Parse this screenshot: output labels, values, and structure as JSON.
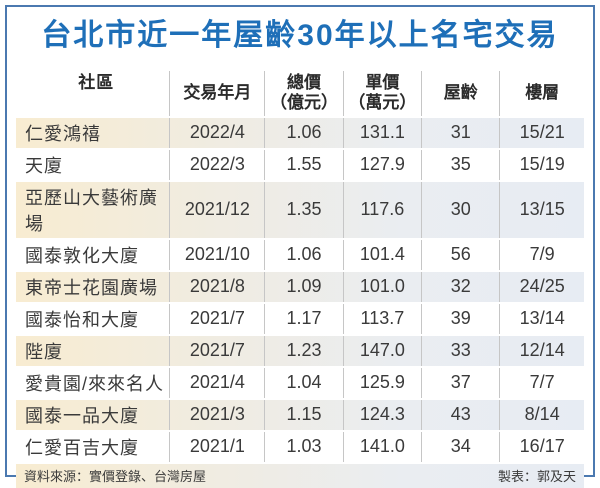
{
  "page": {
    "title": "台北市近一年屋齡30年以上名宅交易",
    "accent_title_blue": "#1e6fb8",
    "frame_border_blue": "#4b79b0",
    "divider_orange": "#f6ae05",
    "alt_row_left_cream": "#f8ecd1",
    "alt_row_right_blue": "#e7ecf3"
  },
  "chart_data": {
    "type": "table",
    "title": "台北市近一年屋齡30年以上名宅交易",
    "columns": [
      {
        "label": "社區",
        "sub": ""
      },
      {
        "label": "交易年月",
        "sub": ""
      },
      {
        "label": "總價",
        "sub": "（億元）"
      },
      {
        "label": "單價",
        "sub": "（萬元）"
      },
      {
        "label": "屋齡",
        "sub": ""
      },
      {
        "label": "樓層",
        "sub": ""
      }
    ],
    "rows": [
      [
        "仁愛鴻禧",
        "2022/4",
        "1.06",
        "131.1",
        "31",
        "15/21"
      ],
      [
        "天廈",
        "2022/3",
        "1.55",
        "127.9",
        "35",
        "15/19"
      ],
      [
        "亞歷山大藝術廣場",
        "2021/12",
        "1.35",
        "117.6",
        "30",
        "13/15"
      ],
      [
        "國泰敦化大廈",
        "2021/10",
        "1.06",
        "101.4",
        "56",
        "7/9"
      ],
      [
        "東帝士花園廣場",
        "2021/8",
        "1.09",
        "101.0",
        "32",
        "24/25"
      ],
      [
        "國泰怡和大廈",
        "2021/7",
        "1.17",
        "113.7",
        "39",
        "13/14"
      ],
      [
        "陛廈",
        "2021/7",
        "1.23",
        "147.0",
        "33",
        "12/14"
      ],
      [
        "愛貴園/來來名人",
        "2021/4",
        "1.04",
        "125.9",
        "37",
        "7/7"
      ],
      [
        "國泰一品大廈",
        "2021/3",
        "1.15",
        "124.3",
        "43",
        "8/14"
      ],
      [
        "仁愛百吉大廈",
        "2021/1",
        "1.03",
        "141.0",
        "34",
        "16/17"
      ]
    ]
  },
  "footer": {
    "source": "資料來源：實價登錄、台灣房屋",
    "credit": "製表：郭及天"
  }
}
